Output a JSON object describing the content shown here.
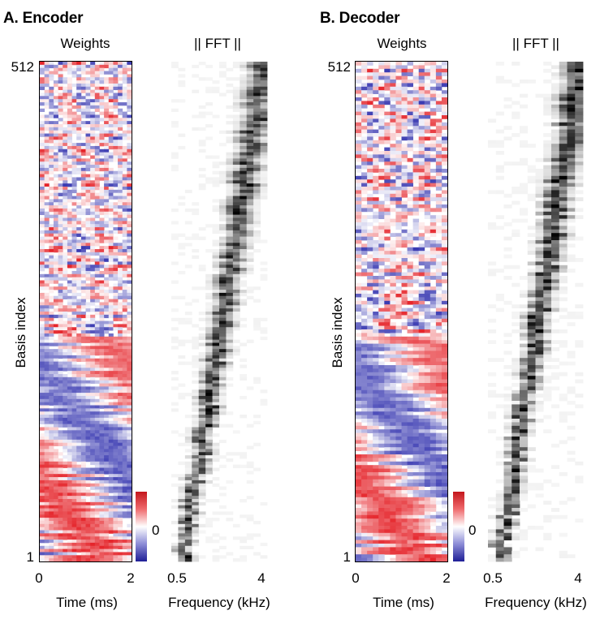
{
  "colors": {
    "positive": "#e5252b",
    "negative": "#3b3bb2",
    "neutral": "#ffffff",
    "fft_high": "#000000",
    "fft_low": "#ffffff"
  },
  "chart_data": [
    {
      "id": "encoder",
      "title": "A. Encoder",
      "seed": 7,
      "weights": {
        "type": "heatmap",
        "title": "Weights",
        "xlabel": "Time (ms)",
        "ylabel": "Basis index",
        "x_ticks": [
          "0",
          "2"
        ],
        "xlim": [
          0,
          2
        ],
        "y_ticks": [
          "512",
          "1"
        ],
        "ylim": [
          1,
          512
        ],
        "n_time_bins": 20,
        "n_rows": 160,
        "colorbar_tick": "0",
        "colorbar_range": [
          -1,
          1
        ]
      },
      "fft": {
        "type": "heatmap",
        "title": "|| FFT ||",
        "xlabel": "Frequency (kHz)",
        "x_ticks": [
          "0.5",
          "4"
        ],
        "xlim": [
          0.5,
          4
        ],
        "n_freq_bins": 14,
        "n_rows": 160
      }
    },
    {
      "id": "decoder",
      "title": "B. Decoder",
      "seed": 19,
      "weights": {
        "type": "heatmap",
        "title": "Weights",
        "xlabel": "Time (ms)",
        "ylabel": "Basis index",
        "x_ticks": [
          "0",
          "2"
        ],
        "xlim": [
          0,
          2
        ],
        "y_ticks": [
          "512",
          "1"
        ],
        "ylim": [
          1,
          512
        ],
        "n_time_bins": 16,
        "n_rows": 140,
        "colorbar_tick": "0",
        "colorbar_range": [
          -1,
          1
        ]
      },
      "fft": {
        "type": "heatmap",
        "title": "|| FFT ||",
        "xlabel": "Frequency (kHz)",
        "x_ticks": [
          "0.5",
          "4"
        ],
        "xlim": [
          0.5,
          4
        ],
        "n_freq_bins": 12,
        "n_rows": 140
      }
    }
  ]
}
